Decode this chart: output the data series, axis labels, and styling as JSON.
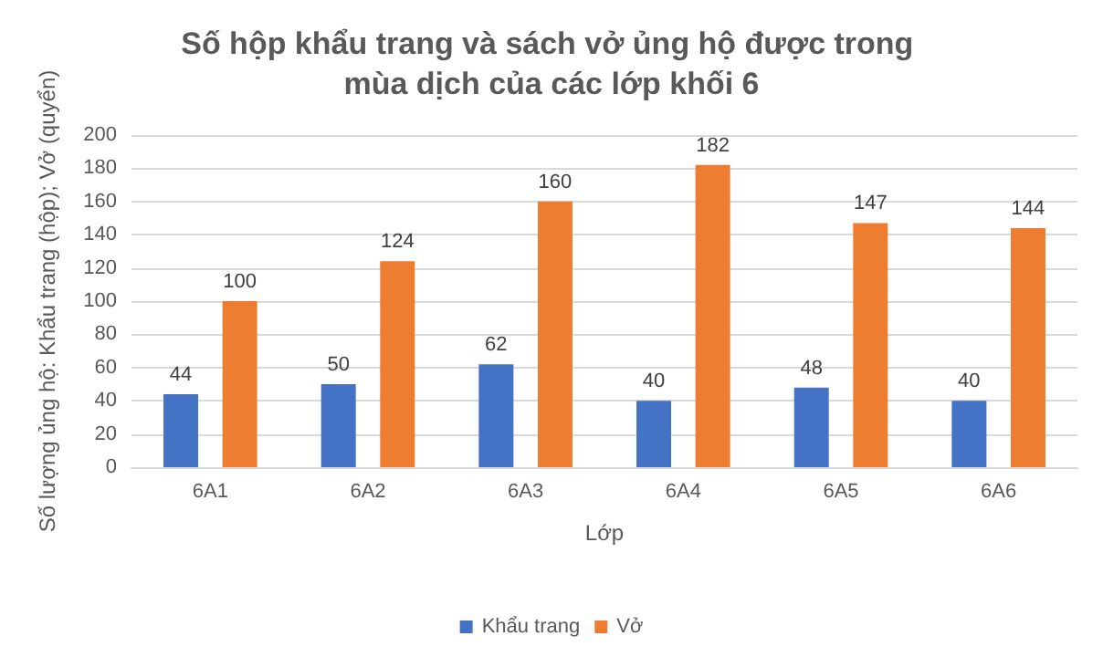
{
  "chart_data": {
    "type": "bar",
    "title": "Số hộp khẩu trang và sách vở ủng hộ được trong mùa dịch của các lớp khối 6",
    "xlabel": "Lớp",
    "ylabel": "Số lượng ủng hộ: Khẩu trang (hộp); Vở (quyển)",
    "categories": [
      "6A1",
      "6A2",
      "6A3",
      "6A4",
      "6A5",
      "6A6"
    ],
    "series": [
      {
        "name": "Khẩu trang",
        "color": "#4472c4",
        "values": [
          44,
          50,
          62,
          40,
          48,
          40
        ]
      },
      {
        "name": "Vở",
        "color": "#ed7d31",
        "values": [
          100,
          124,
          160,
          182,
          147,
          144
        ]
      }
    ],
    "ylim": [
      0,
      200
    ],
    "yticks": [
      0,
      20,
      40,
      60,
      80,
      100,
      120,
      140,
      160,
      180,
      200
    ],
    "grid": "y",
    "legend": "bottom",
    "data_labels": true
  }
}
